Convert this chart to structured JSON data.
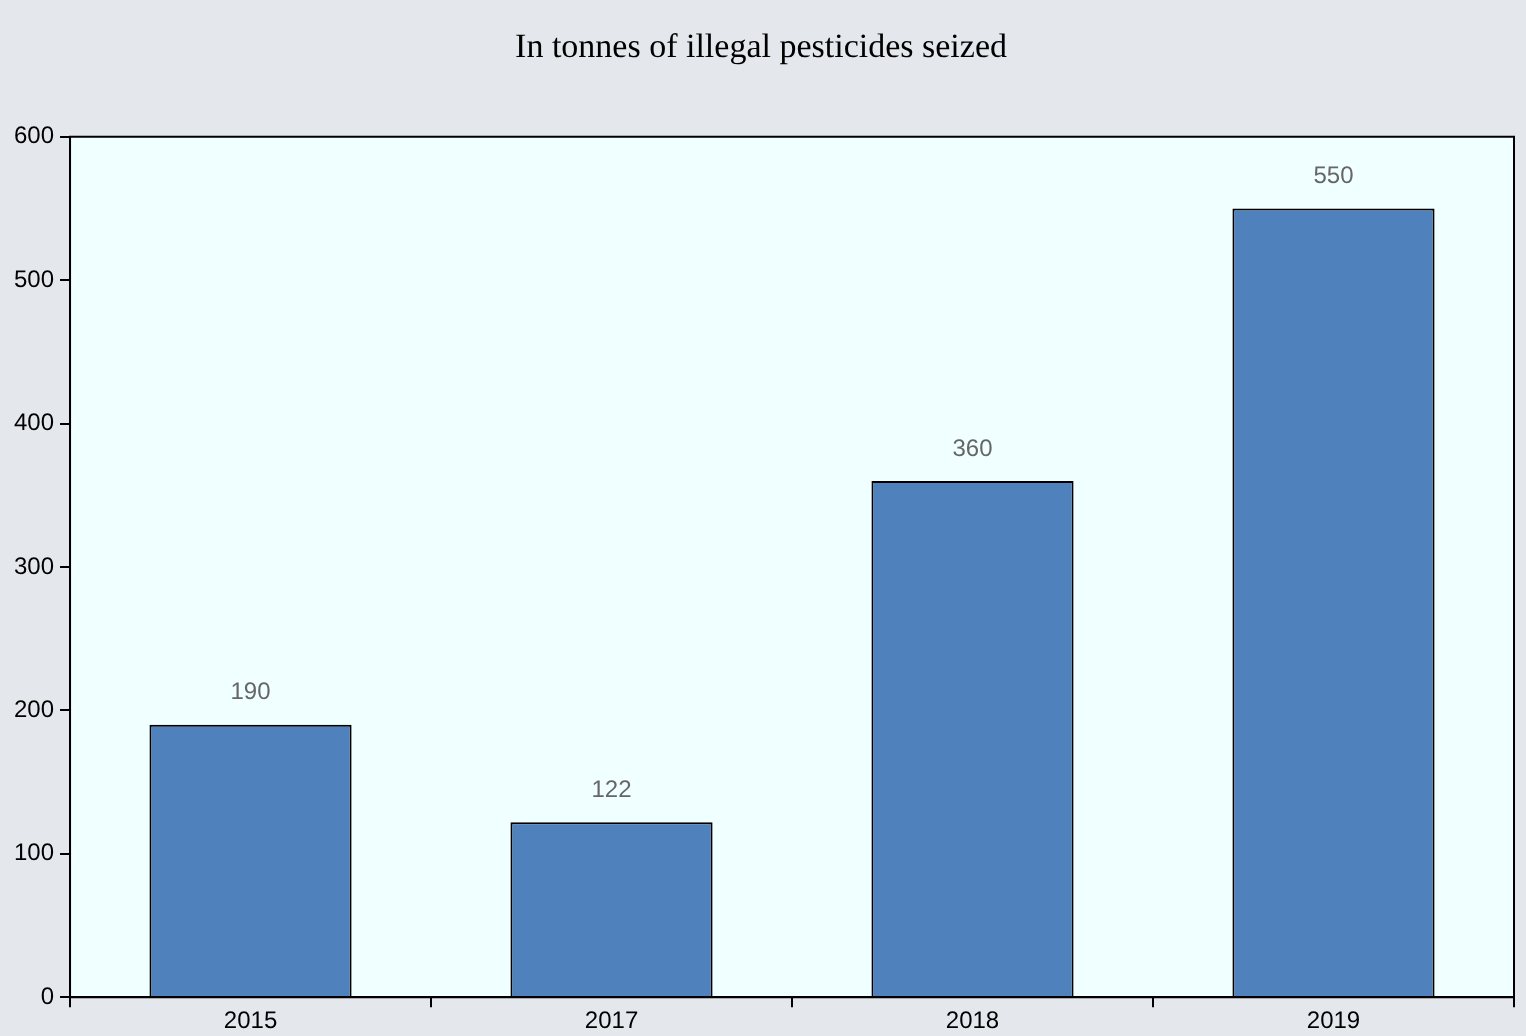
{
  "chart_data": {
    "type": "bar",
    "title": "In tonnes of illegal pesticides seized",
    "categories": [
      "2015",
      "2017",
      "2018",
      "2019"
    ],
    "values": [
      190,
      122,
      360,
      550
    ],
    "color": "#4f81bd",
    "ylim": [
      0,
      600
    ],
    "yticks": [
      0,
      100,
      200,
      300,
      400,
      500,
      600
    ],
    "grid": false,
    "legend": false,
    "data_labels": true
  }
}
